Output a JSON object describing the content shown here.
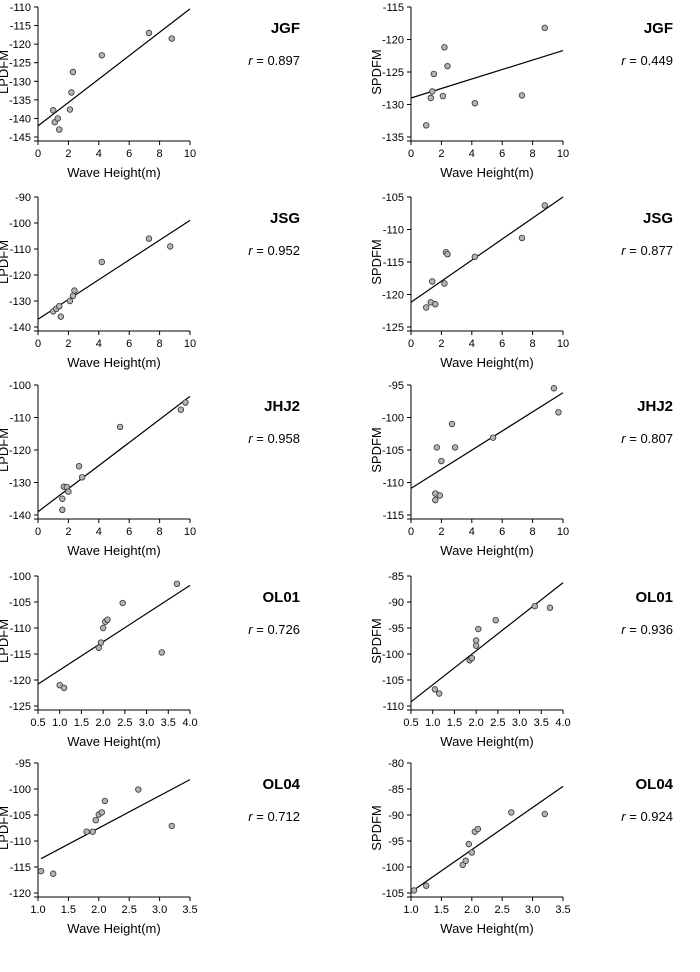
{
  "chart_data": [
    {
      "type": "scatter",
      "station": "JGF",
      "r_label": "r",
      "r_value": "= 0.897",
      "xlabel": "Wave Height(m)",
      "ylabel": "LPDFM",
      "xlim": [
        0,
        10
      ],
      "ylim": [
        -145,
        -110
      ],
      "xticks": [
        0,
        2,
        4,
        6,
        8,
        10
      ],
      "yticks": [
        -145,
        -140,
        -135,
        -130,
        -125,
        -120,
        -115,
        -110
      ],
      "x": [
        1.0,
        1.1,
        1.3,
        1.4,
        2.1,
        2.2,
        2.3,
        4.2,
        7.3,
        8.8
      ],
      "y": [
        -137.8,
        -141,
        -140,
        -143,
        -137.6,
        -133,
        -127.5,
        -123,
        -117,
        -118.5
      ],
      "fit": [
        [
          0,
          -142
        ],
        [
          10,
          -110.5
        ]
      ]
    },
    {
      "type": "scatter",
      "station": "JGF",
      "r_label": "r",
      "r_value": "= 0.449",
      "xlabel": "Wave Height(m)",
      "ylabel": "SPDFM",
      "xlim": [
        0,
        10
      ],
      "ylim": [
        -135,
        -115
      ],
      "xticks": [
        0,
        2,
        4,
        6,
        8,
        10
      ],
      "yticks": [
        -135,
        -130,
        -125,
        -120,
        -115
      ],
      "x": [
        1.0,
        1.3,
        1.4,
        1.5,
        2.1,
        2.2,
        2.4,
        4.2,
        7.3,
        8.8
      ],
      "y": [
        -133.2,
        -129,
        -128,
        -125.3,
        -128.7,
        -121.2,
        -124.1,
        -129.8,
        -128.6,
        -118.2
      ],
      "fit": [
        [
          0,
          -129
        ],
        [
          10,
          -121.7
        ]
      ]
    },
    {
      "type": "scatter",
      "station": "JSG",
      "r_label": "r",
      "r_value": "= 0.952",
      "xlabel": "Wave Height(m)",
      "ylabel": "LPDFM",
      "xlim": [
        0,
        10
      ],
      "ylim": [
        -140,
        -90
      ],
      "xticks": [
        0,
        2,
        4,
        6,
        8,
        10
      ],
      "yticks": [
        -140,
        -130,
        -120,
        -110,
        -100,
        -90
      ],
      "x": [
        1.0,
        1.2,
        1.4,
        1.5,
        2.1,
        2.3,
        2.4,
        4.2,
        7.3,
        8.7
      ],
      "y": [
        -134,
        -133,
        -132,
        -136,
        -130,
        -128,
        -126,
        -115,
        -106,
        -109
      ],
      "fit": [
        [
          0,
          -137
        ],
        [
          10,
          -99
        ]
      ]
    },
    {
      "type": "scatter",
      "station": "JSG",
      "r_label": "r",
      "r_value": "= 0.877",
      "xlabel": "Wave Height(m)",
      "ylabel": "SPDFM",
      "xlim": [
        0,
        10
      ],
      "ylim": [
        -125,
        -105
      ],
      "xticks": [
        0,
        2,
        4,
        6,
        8,
        10
      ],
      "yticks": [
        -125,
        -120,
        -115,
        -110,
        -105
      ],
      "x": [
        1.0,
        1.3,
        1.4,
        1.6,
        2.2,
        2.3,
        2.4,
        4.2,
        7.3,
        8.8
      ],
      "y": [
        -122,
        -121.2,
        -118,
        -121.5,
        -118.3,
        -113.5,
        -113.8,
        -114.2,
        -111.3,
        -106.3
      ],
      "fit": [
        [
          0,
          -121.2
        ],
        [
          10,
          -105
        ]
      ]
    },
    {
      "type": "scatter",
      "station": "JHJ2",
      "r_label": "r",
      "r_value": "= 0.958",
      "xlabel": "Wave Height(m)",
      "ylabel": "LPDFM",
      "xlim": [
        0,
        10
      ],
      "ylim": [
        -140,
        -100
      ],
      "xticks": [
        0,
        2,
        4,
        6,
        8,
        10
      ],
      "yticks": [
        -140,
        -130,
        -120,
        -110,
        -100
      ],
      "x": [
        1.6,
        1.6,
        1.7,
        1.9,
        2.0,
        2.7,
        2.9,
        5.4,
        9.4,
        9.7
      ],
      "y": [
        -138.4,
        -135,
        -131.3,
        -131.4,
        -132.8,
        -125,
        -128.4,
        -112.9,
        -107.6,
        -105.4
      ],
      "fit": [
        [
          0,
          -139
        ],
        [
          10,
          -103.5
        ]
      ]
    },
    {
      "type": "scatter",
      "station": "JHJ2",
      "r_label": "r",
      "r_value": "= 0.807",
      "xlabel": "Wave Height(m)",
      "ylabel": "SPDFM",
      "xlim": [
        0,
        10
      ],
      "ylim": [
        -115,
        -95
      ],
      "xticks": [
        0,
        2,
        4,
        6,
        8,
        10
      ],
      "yticks": [
        -115,
        -110,
        -105,
        -100,
        -95
      ],
      "x": [
        1.6,
        1.6,
        1.7,
        1.9,
        2.0,
        2.7,
        2.9,
        5.4,
        9.4,
        9.7
      ],
      "y": [
        -112.7,
        -111.7,
        -104.6,
        -112,
        -106.7,
        -101,
        -104.6,
        -103.1,
        -95.5,
        -99.2
      ],
      "fit": [
        [
          0,
          -110.9
        ],
        [
          10,
          -96.2
        ]
      ]
    },
    {
      "type": "scatter",
      "station": "OL01",
      "r_label": "r",
      "r_value": "= 0.726",
      "xlabel": "Wave Height(m)",
      "ylabel": "LPDFM",
      "xlim": [
        0.5,
        4.0
      ],
      "ylim": [
        -125,
        -100
      ],
      "xticks": [
        0.5,
        1.0,
        1.5,
        2.0,
        2.5,
        3.0,
        3.5,
        4.0
      ],
      "xtick_labels": [
        "0.5",
        "1.0",
        "1.5",
        "2.0",
        "2.5",
        "3.0",
        "3.5",
        "4.0"
      ],
      "yticks": [
        -125,
        -120,
        -115,
        -110,
        -105,
        -100
      ],
      "x": [
        1.0,
        1.1,
        1.9,
        1.95,
        2.0,
        2.05,
        2.1,
        2.45,
        3.35,
        3.7
      ],
      "y": [
        -121,
        -121.5,
        -113.8,
        -112.8,
        -110,
        -108.8,
        -108.4,
        -105.2,
        -114.7,
        -101.5
      ],
      "fit": [
        [
          0.5,
          -120.8
        ],
        [
          4.0,
          -101.8
        ]
      ]
    },
    {
      "type": "scatter",
      "station": "OL01",
      "r_label": "r",
      "r_value": "= 0.936",
      "xlabel": "Wave Height(m)",
      "ylabel": "SPDFM",
      "xlim": [
        0.5,
        4.0
      ],
      "ylim": [
        -110,
        -85
      ],
      "xticks": [
        0.5,
        1.0,
        1.5,
        2.0,
        2.5,
        3.0,
        3.5,
        4.0
      ],
      "xtick_labels": [
        "0.5",
        "1.0",
        "1.5",
        "2.0",
        "2.5",
        "3.0",
        "3.5",
        "4.0"
      ],
      "yticks": [
        -110,
        -105,
        -100,
        -95,
        -90,
        -85
      ],
      "x": [
        1.05,
        1.15,
        1.85,
        1.9,
        2.0,
        2.0,
        2.05,
        2.45,
        3.35,
        3.7
      ],
      "y": [
        -106.8,
        -107.6,
        -101.2,
        -100.8,
        -98.4,
        -97.4,
        -95.2,
        -93.5,
        -90.8,
        -91.1
      ],
      "fit": [
        [
          0.5,
          -109.2
        ],
        [
          4.0,
          -86.3
        ]
      ]
    },
    {
      "type": "scatter",
      "station": "OL04",
      "r_label": "r",
      "r_value": "= 0.712",
      "xlabel": "Wave Height(m)",
      "ylabel": "LPDFM",
      "xlim": [
        1.0,
        3.5
      ],
      "ylim": [
        -120,
        -95
      ],
      "xticks": [
        1.0,
        1.5,
        2.0,
        2.5,
        3.0,
        3.5
      ],
      "xtick_labels": [
        "1.0",
        "1.5",
        "2.0",
        "2.5",
        "3.0",
        "3.5"
      ],
      "yticks": [
        -120,
        -115,
        -110,
        -105,
        -100,
        -95
      ],
      "x": [
        1.05,
        1.25,
        1.8,
        1.9,
        1.95,
        2.0,
        2.05,
        2.1,
        2.65,
        3.2
      ],
      "y": [
        -115.8,
        -116.3,
        -108.2,
        -108.2,
        -106,
        -104.9,
        -104.5,
        -102.3,
        -100.1,
        -107.1
      ],
      "fit": [
        [
          1.05,
          -113.4
        ],
        [
          3.5,
          -98.2
        ]
      ]
    },
    {
      "type": "scatter",
      "station": "OL04",
      "r_label": "r",
      "r_value": "= 0.924",
      "xlabel": "Wave Height(m)",
      "ylabel": "SPDFM",
      "xlim": [
        1.0,
        3.5
      ],
      "ylim": [
        -105,
        -80
      ],
      "xticks": [
        1.0,
        1.5,
        2.0,
        2.5,
        3.0,
        3.5
      ],
      "xtick_labels": [
        "1.0",
        "1.5",
        "2.0",
        "2.5",
        "3.0",
        "3.5"
      ],
      "yticks": [
        -105,
        -100,
        -95,
        -90,
        -85,
        -80
      ],
      "x": [
        1.05,
        1.25,
        1.85,
        1.9,
        1.95,
        2.0,
        2.05,
        2.1,
        2.65,
        3.2
      ],
      "y": [
        -104.5,
        -103.6,
        -99.6,
        -98.8,
        -95.6,
        -97.2,
        -93.2,
        -92.7,
        -89.5,
        -89.8
      ],
      "fit": [
        [
          1.05,
          -104.4
        ],
        [
          3.5,
          -84.5
        ]
      ]
    }
  ]
}
